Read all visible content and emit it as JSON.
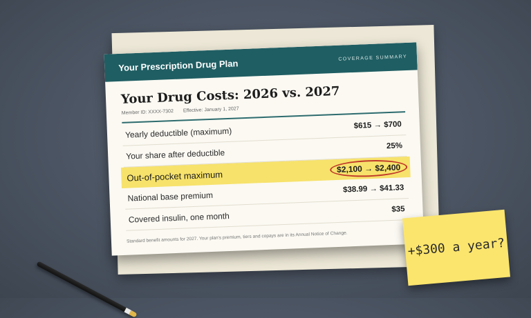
{
  "header": {
    "title": "Your Prescription Drug Plan",
    "subtitle": "COVERAGE SUMMARY"
  },
  "document": {
    "title": "Your Drug Costs: 2026 vs. 2027",
    "member_id": "Member ID: XXXX-7302",
    "effective": "Effective: January 1, 2027"
  },
  "rows": [
    {
      "label": "Yearly deductible (maximum)",
      "value": "$615 → $700"
    },
    {
      "label": "Your share after deductible",
      "value": "25%"
    },
    {
      "label": "Out-of-pocket maximum",
      "value": "$2,100 → $2,400"
    },
    {
      "label": "National base premium",
      "value": "$38.99 → $41.33"
    },
    {
      "label": "Covered insulin, one month",
      "value": "$35"
    }
  ],
  "footnote": "Standard benefit amounts for 2027. Your plan's premium, tiers and copays are in its Annual Notice of Change.",
  "sticky_note": {
    "text": "+$300 a year?"
  },
  "colors": {
    "header": "#1f5e63",
    "highlight": "#f7e26b",
    "circle": "#c0392b",
    "sticky": "#fbe56d"
  }
}
